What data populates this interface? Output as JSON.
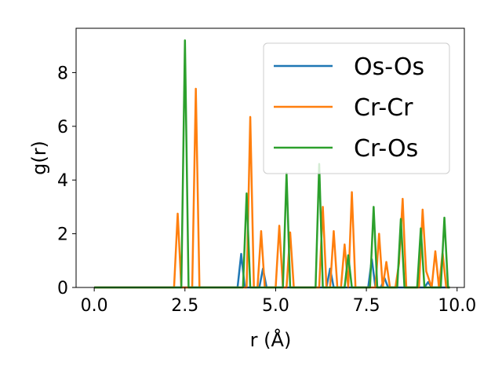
{
  "chart_data": {
    "type": "line",
    "xlabel": "r (Å)",
    "ylabel": "g(r)",
    "xlim": [
      -0.5,
      10.2
    ],
    "ylim": [
      0,
      9.65
    ],
    "xticks": [
      0.0,
      2.5,
      5.0,
      7.5,
      10.0
    ],
    "xtick_labels": [
      "0.0",
      "2.5",
      "5.0",
      "7.5",
      "10.0"
    ],
    "yticks": [
      0,
      2,
      4,
      6,
      8
    ],
    "ytick_labels": [
      "0",
      "2",
      "4",
      "6",
      "8"
    ],
    "grid": false,
    "legend_position": "top-right",
    "series": [
      {
        "name": "Os-Os",
        "color": "#1f77b4",
        "x": [
          0.0,
          3.95,
          4.05,
          4.15,
          4.55,
          4.65,
          4.75,
          6.4,
          6.5,
          6.6,
          7.55,
          7.65,
          7.75,
          7.9,
          8.0,
          8.1,
          9.1,
          9.2,
          9.3,
          9.8
        ],
        "y": [
          0.0,
          0.0,
          1.25,
          0.0,
          0.0,
          0.7,
          0.0,
          0.0,
          0.7,
          0.0,
          0.0,
          1.05,
          0.0,
          0.0,
          0.35,
          0.0,
          0.0,
          0.2,
          0.0,
          0.0
        ]
      },
      {
        "name": "Cr-Cr",
        "color": "#ff7f0e",
        "x": [
          0.0,
          2.2,
          2.3,
          2.4,
          2.7,
          2.8,
          2.9,
          4.2,
          4.3,
          4.4,
          4.5,
          4.6,
          4.7,
          5.0,
          5.1,
          5.2,
          5.3,
          5.4,
          5.5,
          6.2,
          6.3,
          6.4,
          6.5,
          6.6,
          6.7,
          6.8,
          6.9,
          7.0,
          7.1,
          7.2,
          7.75,
          7.85,
          7.95,
          8.05,
          8.15,
          8.3,
          8.4,
          8.5,
          8.6,
          8.95,
          9.05,
          9.15,
          9.3,
          9.4,
          9.5,
          9.6,
          9.7,
          9.8
        ],
        "y": [
          0.0,
          0.0,
          2.75,
          0.0,
          0.0,
          7.4,
          0.0,
          0.0,
          6.35,
          0.0,
          0.0,
          2.1,
          0.0,
          0.0,
          2.3,
          0.0,
          0.0,
          2.05,
          0.0,
          0.0,
          3.0,
          0.0,
          0.0,
          2.1,
          0.0,
          0.0,
          1.6,
          0.0,
          3.55,
          0.0,
          0.0,
          2.0,
          0.0,
          0.95,
          0.0,
          0.0,
          0.9,
          3.3,
          0.0,
          0.0,
          2.9,
          0.6,
          0.0,
          1.35,
          0.0,
          1.3,
          0.0,
          0.0
        ]
      },
      {
        "name": "Cr-Os",
        "color": "#2ca02c",
        "x": [
          0.0,
          2.4,
          2.5,
          2.6,
          4.1,
          4.2,
          4.3,
          5.2,
          5.3,
          5.4,
          6.1,
          6.2,
          6.3,
          6.9,
          7.0,
          7.1,
          7.6,
          7.7,
          7.8,
          8.35,
          8.45,
          8.55,
          8.9,
          9.0,
          9.1,
          9.55,
          9.65,
          9.75,
          9.8
        ],
        "y": [
          0.0,
          0.0,
          9.2,
          0.0,
          0.0,
          3.5,
          0.0,
          0.0,
          4.25,
          0.0,
          0.0,
          4.6,
          0.0,
          0.0,
          1.2,
          0.0,
          0.0,
          3.0,
          0.0,
          0.0,
          2.55,
          0.0,
          0.0,
          2.2,
          0.0,
          0.0,
          2.6,
          0.0,
          0.0
        ]
      }
    ]
  }
}
